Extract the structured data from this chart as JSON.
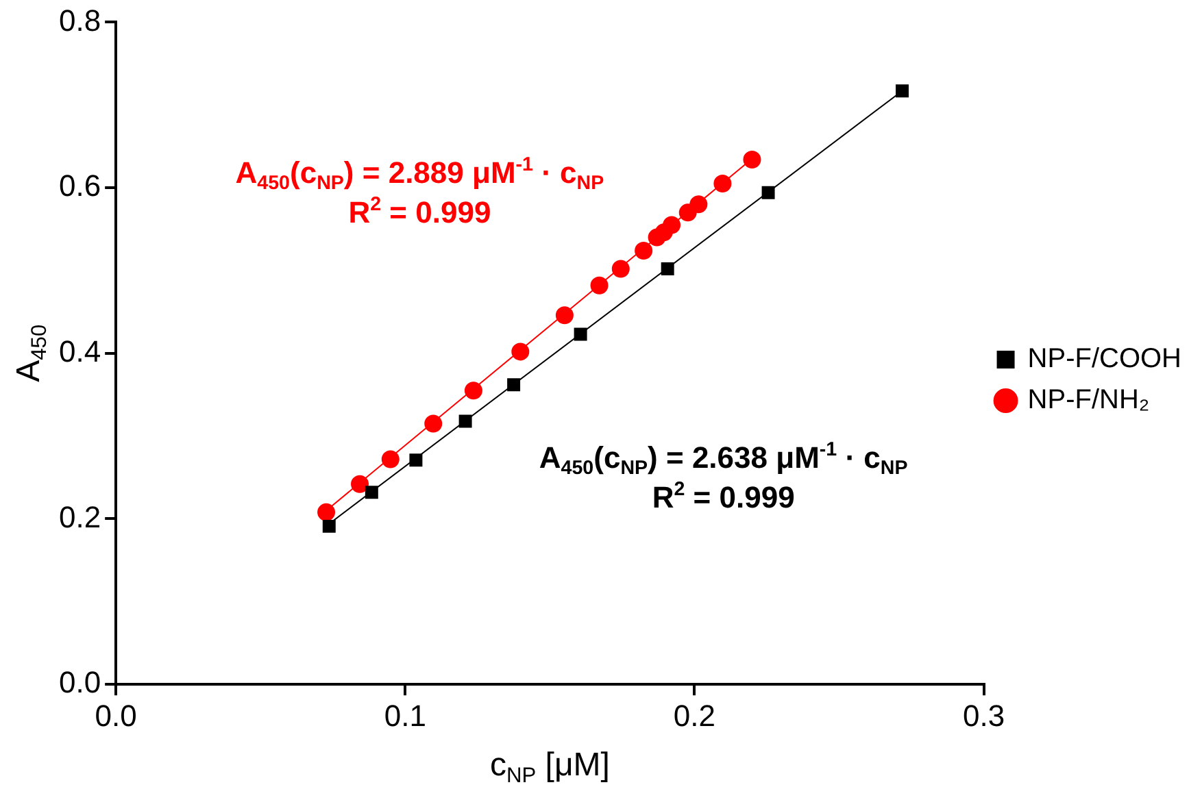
{
  "chart_data": {
    "type": "scatter",
    "xlabel": "c$_{NP}$ [μM]",
    "ylabel": "A$_{450}$",
    "xlim": [
      0,
      0.3
    ],
    "xticks": [
      {
        "value": 0,
        "label": "0.0"
      },
      {
        "value": 0.1,
        "label": "0.1"
      },
      {
        "value": 0.2,
        "label": "0.2"
      },
      {
        "value": 0.3,
        "label": "0.3"
      }
    ],
    "ylim": [
      0,
      0.8
    ],
    "yticks": [
      {
        "value": 0,
        "label": "0.0"
      },
      {
        "value": 0.2,
        "label": "0.2"
      },
      {
        "value": 0.4,
        "label": "0.4"
      },
      {
        "value": 0.6,
        "label": "0.6"
      },
      {
        "value": 0.8,
        "label": "0.8"
      }
    ],
    "grid": false,
    "legend": "right",
    "series": [
      {
        "name": "NP-F/COOH",
        "marker": "square",
        "color": "#000000",
        "x": [
          0.0737,
          0.0884,
          0.1037,
          0.1208,
          0.1375,
          0.1606,
          0.1907,
          0.2255,
          0.2718
        ],
        "values": [
          0.191,
          0.232,
          0.271,
          0.318,
          0.362,
          0.423,
          0.502,
          0.594,
          0.717
        ]
      },
      {
        "name": "NP-F/NH₂",
        "marker": "circle",
        "color": "#ff0000",
        "x": [
          0.0727,
          0.0843,
          0.0949,
          0.1097,
          0.1236,
          0.1398,
          0.1551,
          0.1671,
          0.1745,
          0.1824,
          0.187,
          0.1894,
          0.1921,
          0.1977,
          0.2014,
          0.2097,
          0.2199
        ],
        "values": [
          0.208,
          0.242,
          0.272,
          0.315,
          0.355,
          0.402,
          0.446,
          0.482,
          0.502,
          0.524,
          0.54,
          0.546,
          0.555,
          0.57,
          0.58,
          0.605,
          0.634
        ]
      },
      {
        "type": "line",
        "marker": "none",
        "line_style": "solid",
        "color": "#000000",
        "x": [
          0.0737,
          0.2718
        ],
        "values": [
          0.194,
          0.717
        ]
      },
      {
        "type": "line",
        "marker": "none",
        "line_style": "solid",
        "color": "#ff0000",
        "x": [
          0.0727,
          0.2199
        ],
        "values": [
          0.21,
          0.635
        ]
      }
    ],
    "annotations": [
      "A$_{450}$(c$_{NP}$) = 2.638 μM$^{-1}$ · c$_{NP}$",
      "R$^{2}$ = 0.999",
      "A$_{450}$(c$_{NP}$) = 2.889 μM$^{-1}$ · c$_{NP}$",
      "R$^{2}$ = 0.999"
    ]
  }
}
